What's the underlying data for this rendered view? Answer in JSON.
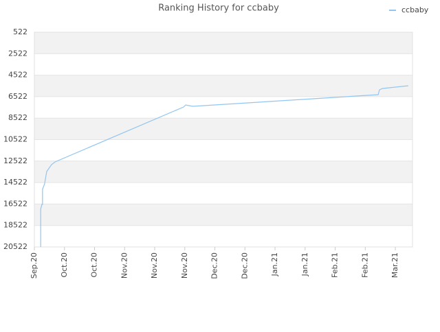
{
  "chart_data": {
    "type": "line",
    "title": "Ranking History for ccbaby",
    "x": [
      0.21,
      0.21,
      0.25,
      0.27,
      0.27,
      0.34,
      0.41,
      0.57,
      0.69,
      4.96,
      5.03,
      5.26,
      11.43,
      11.47,
      11.57,
      12.43
    ],
    "series": [
      {
        "name": "ccbaby",
        "color": "#92c5f0",
        "values": [
          20522,
          17008,
          16560,
          16560,
          15155,
          14644,
          13493,
          12854,
          12599,
          7487,
          7295,
          7423,
          6337,
          5889,
          5762,
          5506
        ]
      }
    ],
    "xlim": [
      0,
      12.57
    ],
    "xticks": [
      {
        "value": 0,
        "label": "Sep.20"
      },
      {
        "value": 1,
        "label": "Oct.20"
      },
      {
        "value": 2,
        "label": "Oct.20"
      },
      {
        "value": 3,
        "label": "Nov.20"
      },
      {
        "value": 4,
        "label": "Nov.20"
      },
      {
        "value": 5,
        "label": "Nov.20"
      },
      {
        "value": 6,
        "label": "Dec.20"
      },
      {
        "value": 7,
        "label": "Dec.20"
      },
      {
        "value": 8,
        "label": "Jan.21"
      },
      {
        "value": 9,
        "label": "Jan.21"
      },
      {
        "value": 10,
        "label": "Feb.21"
      },
      {
        "value": 11,
        "label": "Feb.21"
      },
      {
        "value": 12,
        "label": "Mar.21"
      }
    ],
    "ylim": [
      20522,
      522
    ],
    "yticks": [
      522,
      2522,
      4522,
      6522,
      8522,
      10522,
      12522,
      14522,
      16522,
      18522,
      20522
    ],
    "grid": true,
    "legend": "top-right"
  }
}
